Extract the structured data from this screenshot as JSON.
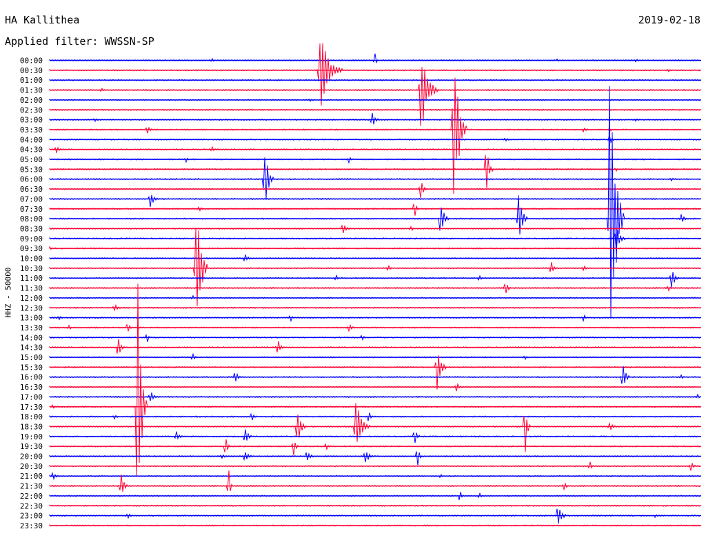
{
  "header": {
    "station": "HA Kallithea",
    "date": "2019-02-18",
    "filter": "Applied filter: WWSSN-SP",
    "channel": "HHZ - 50000"
  },
  "colors": {
    "odd": "#0000ff",
    "even": "#ff0033"
  },
  "chart_data": {
    "type": "line",
    "rows": [
      "00:00",
      "00:30",
      "01:00",
      "01:30",
      "02:00",
      "02:30",
      "03:00",
      "03:30",
      "04:00",
      "04:30",
      "05:00",
      "05:30",
      "06:00",
      "06:30",
      "07:00",
      "07:30",
      "08:00",
      "08:30",
      "09:00",
      "09:30",
      "10:00",
      "10:30",
      "11:00",
      "11:30",
      "12:00",
      "12:30",
      "13:00",
      "13:30",
      "14:00",
      "14:30",
      "15:00",
      "15:30",
      "16:00",
      "16:30",
      "17:00",
      "17:30",
      "18:00",
      "18:30",
      "19:00",
      "19:30",
      "20:00",
      "20:30",
      "21:00",
      "21:30",
      "22:00",
      "22:30",
      "23:00",
      "23:30"
    ],
    "row_minutes": 30,
    "events": [
      [
        0,
        0.25,
        2,
        1.4
      ],
      [
        0,
        0.5,
        12,
        0.8
      ],
      [
        0,
        0.78,
        2,
        0.8
      ],
      [
        0,
        0.9,
        2,
        0.8
      ],
      [
        1,
        0.415,
        62,
        8
      ],
      [
        1,
        0.95,
        2,
        0.8
      ],
      [
        3,
        0.08,
        3,
        0.8
      ],
      [
        3,
        0.57,
        70,
        6
      ],
      [
        4,
        0.4,
        2,
        0.8
      ],
      [
        6,
        0.07,
        3,
        1.0
      ],
      [
        6,
        0.495,
        12,
        2.5
      ],
      [
        6,
        0.9,
        2,
        0.8
      ],
      [
        7,
        0.15,
        6,
        1.8
      ],
      [
        7,
        0.62,
        140,
        5
      ],
      [
        7,
        0.82,
        4,
        1.4
      ],
      [
        7,
        0.86,
        4,
        1.0
      ],
      [
        8,
        0.7,
        3,
        1.2
      ],
      [
        8,
        0.86,
        8,
        1.8
      ],
      [
        9,
        0.01,
        5,
        2.5
      ],
      [
        9,
        0.25,
        4,
        1.4
      ],
      [
        10,
        0.21,
        4,
        1.2
      ],
      [
        10,
        0.46,
        6,
        1.0
      ],
      [
        11,
        0.67,
        40,
        2.5
      ],
      [
        11,
        0.87,
        2,
        0.8
      ],
      [
        12,
        0.33,
        55,
        3.5
      ],
      [
        12,
        0.955,
        3,
        0.8
      ],
      [
        13,
        0.57,
        22,
        2.0
      ],
      [
        14,
        0.155,
        14,
        2.5
      ],
      [
        15,
        0.23,
        4,
        1.4
      ],
      [
        15,
        0.56,
        18,
        1.4
      ],
      [
        16,
        0.6,
        30,
        3.0
      ],
      [
        16,
        0.72,
        50,
        3.0
      ],
      [
        16,
        0.86,
        280,
        5.0
      ],
      [
        16,
        0.97,
        8,
        2.0
      ],
      [
        17,
        0.45,
        8,
        3.0
      ],
      [
        17,
        0.555,
        5,
        1.0
      ],
      [
        18,
        0.87,
        25,
        3.0
      ],
      [
        19,
        0.0,
        3,
        1.2
      ],
      [
        20,
        0.3,
        6,
        2.0
      ],
      [
        21,
        0.225,
        130,
        4.0
      ],
      [
        21,
        0.52,
        6,
        1.5
      ],
      [
        21,
        0.77,
        10,
        2.0
      ],
      [
        21,
        0.82,
        4,
        1.4
      ],
      [
        22,
        0.44,
        4,
        1.2
      ],
      [
        22,
        0.66,
        5,
        1.4
      ],
      [
        22,
        0.955,
        20,
        2.5
      ],
      [
        23,
        0.7,
        12,
        1.8
      ],
      [
        23,
        0.95,
        4,
        1.0
      ],
      [
        24,
        0.22,
        3,
        0.8
      ],
      [
        25,
        0.1,
        6,
        2.0
      ],
      [
        26,
        0.015,
        3,
        1.0
      ],
      [
        26,
        0.37,
        5,
        1.4
      ],
      [
        26,
        0.82,
        6,
        1.0
      ],
      [
        27,
        0.03,
        4,
        1.2
      ],
      [
        27,
        0.12,
        10,
        1.2
      ],
      [
        27,
        0.46,
        6,
        2.0
      ],
      [
        28,
        0.15,
        8,
        1.0
      ],
      [
        28,
        0.48,
        4,
        1.2
      ],
      [
        29,
        0.105,
        18,
        2.2
      ],
      [
        29,
        0.35,
        14,
        2.2
      ],
      [
        30,
        0.22,
        6,
        1.4
      ],
      [
        30,
        0.73,
        3,
        0.8
      ],
      [
        31,
        0.595,
        40,
        3.0
      ],
      [
        32,
        0.285,
        10,
        2.0
      ],
      [
        32,
        0.88,
        28,
        2.5
      ],
      [
        32,
        0.97,
        4,
        1.2
      ],
      [
        33,
        0.625,
        10,
        1.5
      ],
      [
        34,
        0.155,
        10,
        2.5
      ],
      [
        34,
        0.995,
        3,
        1.0
      ],
      [
        35,
        0.005,
        4,
        1.2
      ],
      [
        35,
        0.135,
        220,
        3.5
      ],
      [
        36,
        0.1,
        4,
        1.5
      ],
      [
        36,
        0.31,
        8,
        1.5
      ],
      [
        36,
        0.49,
        10,
        1.5
      ],
      [
        37,
        0.38,
        35,
        3.0
      ],
      [
        37,
        0.47,
        45,
        5.0
      ],
      [
        37,
        0.73,
        40,
        2.0
      ],
      [
        37,
        0.86,
        10,
        2.0
      ],
      [
        38,
        0.195,
        8,
        2.0
      ],
      [
        38,
        0.3,
        14,
        2.5
      ],
      [
        38,
        0.56,
        14,
        2.0
      ],
      [
        39,
        0.27,
        20,
        1.5
      ],
      [
        39,
        0.375,
        15,
        1.5
      ],
      [
        39,
        0.425,
        6,
        1.2
      ],
      [
        40,
        0.265,
        4,
        1.5
      ],
      [
        40,
        0.3,
        10,
        2.5
      ],
      [
        40,
        0.395,
        10,
        2.5
      ],
      [
        40,
        0.485,
        14,
        2.5
      ],
      [
        40,
        0.565,
        18,
        1.5
      ],
      [
        41,
        0.83,
        8,
        1.0
      ],
      [
        41,
        0.985,
        10,
        1.5
      ],
      [
        42,
        0.005,
        6,
        2.5
      ],
      [
        42,
        0.6,
        3,
        1.2
      ],
      [
        43,
        0.11,
        20,
        2.5
      ],
      [
        43,
        0.275,
        25,
        1.5
      ],
      [
        43,
        0.79,
        6,
        1.5
      ],
      [
        44,
        0.63,
        12,
        1.0
      ],
      [
        44,
        0.66,
        4,
        1.5
      ],
      [
        46,
        0.12,
        4,
        2.0
      ],
      [
        46,
        0.78,
        25,
        3.0
      ],
      [
        46,
        0.93,
        3,
        1.0
      ]
    ]
  }
}
